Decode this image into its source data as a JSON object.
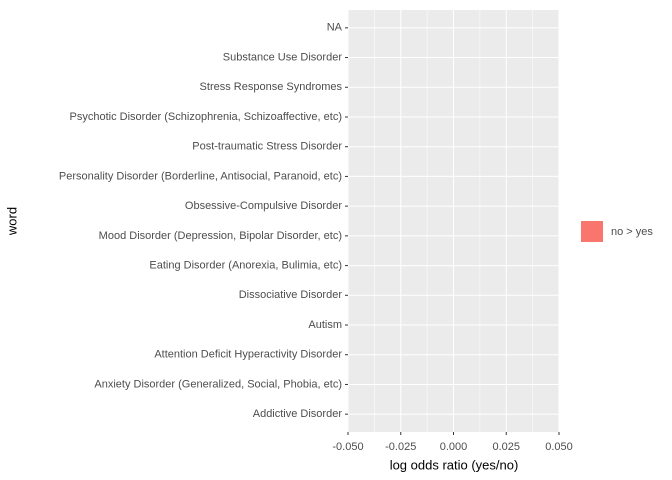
{
  "chart_data": {
    "type": "bar",
    "orientation": "horizontal",
    "xlabel": "log odds ratio (yes/no)",
    "ylabel": "word",
    "categories": [
      "NA",
      "Substance Use Disorder",
      "Stress Response Syndromes",
      "Psychotic Disorder (Schizophrenia, Schizoaffective, etc)",
      "Post-traumatic Stress Disorder",
      "Personality Disorder (Borderline, Antisocial, Paranoid, etc)",
      "Obsessive-Compulsive Disorder",
      "Mood Disorder (Depression, Bipolar Disorder, etc)",
      "Eating Disorder (Anorexia, Bulimia, etc)",
      "Dissociative Disorder",
      "Autism",
      "Attention Deficit Hyperactivity Disorder",
      "Anxiety Disorder (Generalized, Social, Phobia, etc)",
      "Addictive Disorder"
    ],
    "series": [
      {
        "name": "no > yes",
        "color": "#F8766D",
        "values": [
          0,
          0,
          0,
          0,
          0,
          0,
          0,
          0,
          0,
          0,
          0,
          0,
          0,
          0
        ]
      }
    ],
    "xlim": [
      -0.05,
      0.05
    ],
    "xticks": [
      {
        "value": -0.05,
        "label": "-0.050"
      },
      {
        "value": -0.025,
        "label": "-0.025"
      },
      {
        "value": 0,
        "label": "0.000"
      },
      {
        "value": 0.025,
        "label": "0.025"
      },
      {
        "value": 0.05,
        "label": "0.050"
      }
    ],
    "grid": true,
    "legend": "right"
  }
}
